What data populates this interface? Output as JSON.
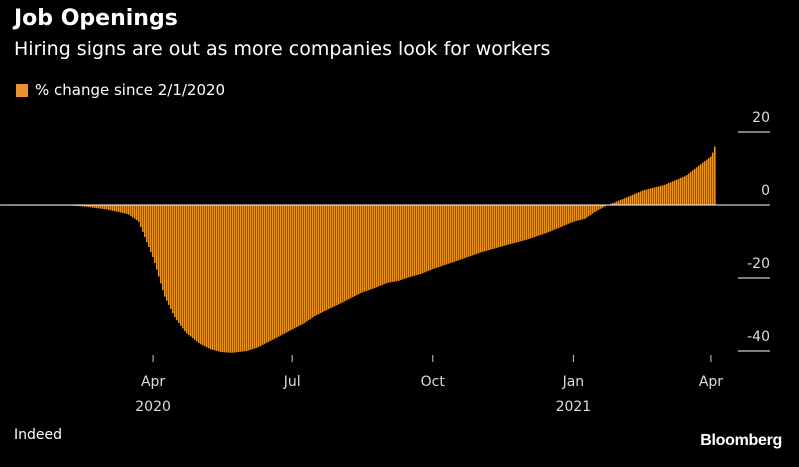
{
  "chart_data": {
    "type": "area",
    "title": "Job Openings",
    "subtitle": "Hiring signs are out as more companies look for workers",
    "series": [
      {
        "name": "% change since 2/1/2020",
        "color": "#e8942a",
        "points": [
          [
            "2020-02-01",
            0
          ],
          [
            "2020-02-15",
            -0.4
          ],
          [
            "2020-03-01",
            -1.2
          ],
          [
            "2020-03-15",
            -2.5
          ],
          [
            "2020-03-22",
            -4.5
          ],
          [
            "2020-04-01",
            -15
          ],
          [
            "2020-04-08",
            -25
          ],
          [
            "2020-04-15",
            -31
          ],
          [
            "2020-04-22",
            -35
          ],
          [
            "2020-05-01",
            -38
          ],
          [
            "2020-05-08",
            -39.5
          ],
          [
            "2020-05-15",
            -40.3
          ],
          [
            "2020-05-22",
            -40.5
          ],
          [
            "2020-06-01",
            -40
          ],
          [
            "2020-06-08",
            -39
          ],
          [
            "2020-06-15",
            -37.5
          ],
          [
            "2020-06-22",
            -36
          ],
          [
            "2020-07-01",
            -34
          ],
          [
            "2020-07-08",
            -32.5
          ],
          [
            "2020-07-15",
            -30.5
          ],
          [
            "2020-07-22",
            -29
          ],
          [
            "2020-08-01",
            -27
          ],
          [
            "2020-08-08",
            -25.5
          ],
          [
            "2020-08-15",
            -24
          ],
          [
            "2020-08-22",
            -23
          ],
          [
            "2020-09-01",
            -21.3
          ],
          [
            "2020-09-08",
            -20.8
          ],
          [
            "2020-09-15",
            -19.8
          ],
          [
            "2020-09-22",
            -19
          ],
          [
            "2020-10-01",
            -17.5
          ],
          [
            "2020-10-15",
            -15.5
          ],
          [
            "2020-11-01",
            -13
          ],
          [
            "2020-11-15",
            -11.3
          ],
          [
            "2020-12-01",
            -9.5
          ],
          [
            "2020-12-15",
            -7.5
          ],
          [
            "2021-01-01",
            -4.5
          ],
          [
            "2021-01-08",
            -3.8
          ],
          [
            "2021-01-15",
            -1.8
          ],
          [
            "2021-01-22",
            -0.2
          ],
          [
            "2021-02-01",
            1.5
          ],
          [
            "2021-02-15",
            4
          ],
          [
            "2021-03-01",
            5.5
          ],
          [
            "2021-03-15",
            8
          ],
          [
            "2021-04-01",
            13.5
          ],
          [
            "2021-04-03",
            16
          ]
        ]
      }
    ],
    "xaxis": {
      "ticks": [
        {
          "date": "2020-04-01",
          "label": "Apr",
          "year": "2020"
        },
        {
          "date": "2020-07-01",
          "label": "Jul",
          "year": ""
        },
        {
          "date": "2020-10-01",
          "label": "Oct",
          "year": ""
        },
        {
          "date": "2021-01-01",
          "label": "Jan",
          "year": "2021"
        },
        {
          "date": "2021-04-01",
          "label": "Apr",
          "year": ""
        }
      ],
      "range": [
        "2020-01-01",
        "2021-04-03"
      ]
    },
    "yaxis": {
      "ticks": [
        {
          "value": 20,
          "label": "20"
        },
        {
          "value": 0,
          "label": "0"
        },
        {
          "value": -20,
          "label": "-20"
        },
        {
          "value": -40,
          "label": "-40"
        }
      ],
      "range": [
        -44,
        25
      ],
      "position": "right"
    },
    "grid": false
  },
  "source": "Indeed",
  "brand": "Bloomberg"
}
